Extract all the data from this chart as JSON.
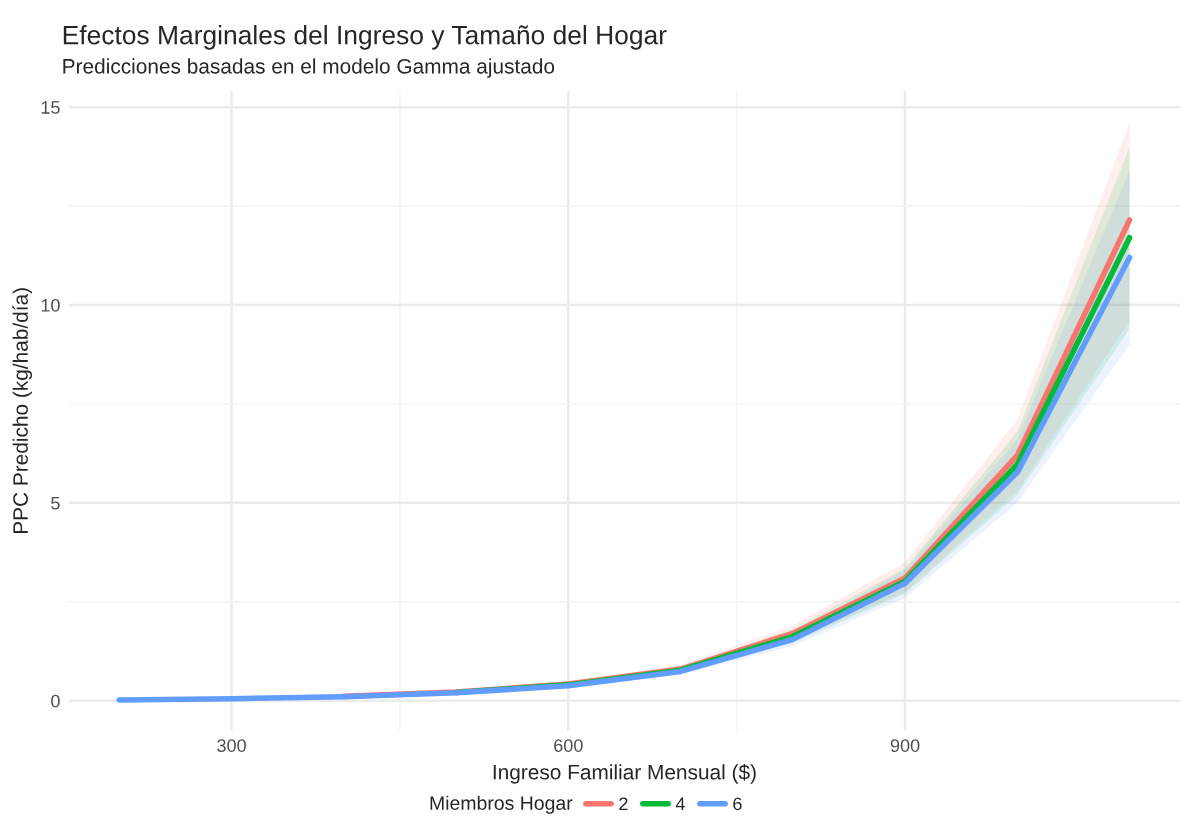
{
  "chart_data": {
    "type": "line",
    "title": "Efectos Marginales del Ingreso y Tamaño del Hogar",
    "subtitle": "Predicciones basadas en el modelo Gamma ajustado",
    "xlabel": "Ingreso Familiar Mensual ($)",
    "ylabel": "PPC Predicho (kg/hab/día)",
    "legend_title": "Miembros Hogar",
    "x": [
      200,
      300,
      400,
      500,
      600,
      700,
      800,
      900,
      1000,
      1100
    ],
    "series": [
      {
        "name": "2",
        "color": "#f8766d",
        "values": [
          null,
          null,
          0.11,
          0.22,
          0.42,
          0.8,
          1.7,
          3.1,
          6.2,
          12.15
        ],
        "lower": [
          0.01,
          0.04,
          0.09,
          0.19,
          0.37,
          0.7,
          1.5,
          2.75,
          5.3,
          9.6
        ],
        "upper": [
          0.03,
          0.06,
          0.13,
          0.25,
          0.47,
          0.9,
          1.9,
          3.5,
          7.1,
          14.6
        ]
      },
      {
        "name": "4",
        "color": "#00ba38",
        "values": [
          null,
          null,
          null,
          0.21,
          0.4,
          0.77,
          1.62,
          3.02,
          5.97,
          11.7
        ],
        "lower": [
          0.01,
          0.04,
          0.09,
          0.18,
          0.36,
          0.69,
          1.45,
          2.7,
          5.2,
          9.4
        ],
        "upper": [
          0.03,
          0.06,
          0.12,
          0.24,
          0.45,
          0.86,
          1.8,
          3.35,
          6.8,
          14.0
        ]
      },
      {
        "name": "6",
        "color": "#619cff",
        "values": [
          0.02,
          0.05,
          0.1,
          0.2,
          0.38,
          0.74,
          1.55,
          2.97,
          5.77,
          11.2
        ],
        "lower": [
          0.01,
          0.04,
          0.08,
          0.17,
          0.34,
          0.66,
          1.38,
          2.6,
          5.0,
          9.0
        ],
        "upper": [
          0.03,
          0.06,
          0.12,
          0.23,
          0.43,
          0.83,
          1.72,
          3.3,
          6.6,
          13.4
        ]
      }
    ],
    "xlim": [
      155,
      1145
    ],
    "ylim": [
      -0.75,
      15.4
    ],
    "xticks": [
      300,
      600,
      900
    ],
    "yticks": [
      0,
      5,
      10,
      15
    ],
    "grid": true,
    "legend": "bottom",
    "marker": "none",
    "line_style": "solid"
  }
}
